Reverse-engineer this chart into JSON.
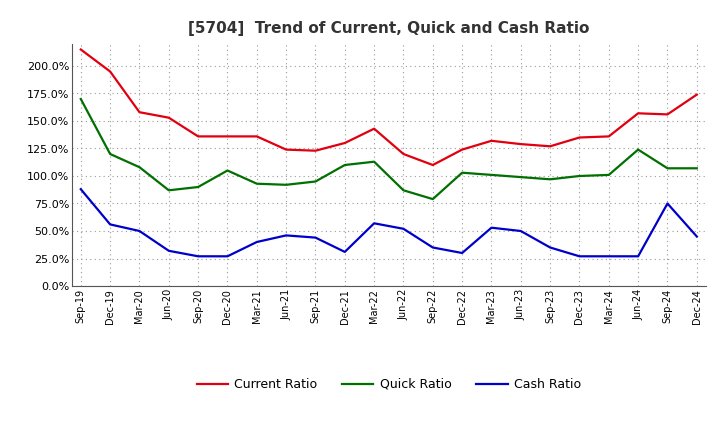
{
  "title": "[5704]  Trend of Current, Quick and Cash Ratio",
  "x_labels": [
    "Sep-19",
    "Dec-19",
    "Mar-20",
    "Jun-20",
    "Sep-20",
    "Dec-20",
    "Mar-21",
    "Jun-21",
    "Sep-21",
    "Dec-21",
    "Mar-22",
    "Jun-22",
    "Sep-22",
    "Dec-22",
    "Mar-23",
    "Jun-23",
    "Sep-23",
    "Dec-23",
    "Mar-24",
    "Jun-24",
    "Sep-24",
    "Dec-24"
  ],
  "current_ratio": [
    215.0,
    195.0,
    158.0,
    153.0,
    136.0,
    136.0,
    136.0,
    124.0,
    123.0,
    130.0,
    143.0,
    120.0,
    110.0,
    124.0,
    132.0,
    129.0,
    127.0,
    135.0,
    136.0,
    157.0,
    156.0,
    174.0
  ],
  "quick_ratio": [
    170.0,
    120.0,
    108.0,
    87.0,
    90.0,
    105.0,
    93.0,
    92.0,
    95.0,
    110.0,
    113.0,
    87.0,
    79.0,
    103.0,
    101.0,
    99.0,
    97.0,
    100.0,
    101.0,
    124.0,
    107.0,
    107.0
  ],
  "cash_ratio": [
    88.0,
    56.0,
    50.0,
    32.0,
    27.0,
    27.0,
    40.0,
    46.0,
    44.0,
    31.0,
    57.0,
    52.0,
    35.0,
    30.0,
    53.0,
    50.0,
    35.0,
    27.0,
    27.0,
    27.0,
    75.0,
    45.0
  ],
  "current_color": "#e00010",
  "quick_color": "#007000",
  "cash_color": "#0000cc",
  "background_color": "#ffffff",
  "grid_color": "#999999",
  "ylim": [
    0.0,
    220.0
  ],
  "yticks": [
    0.0,
    25.0,
    50.0,
    75.0,
    100.0,
    125.0,
    150.0,
    175.0,
    200.0
  ],
  "legend_current": "Current Ratio",
  "legend_quick": "Quick Ratio",
  "legend_cash": "Cash Ratio",
  "line_width": 1.6
}
